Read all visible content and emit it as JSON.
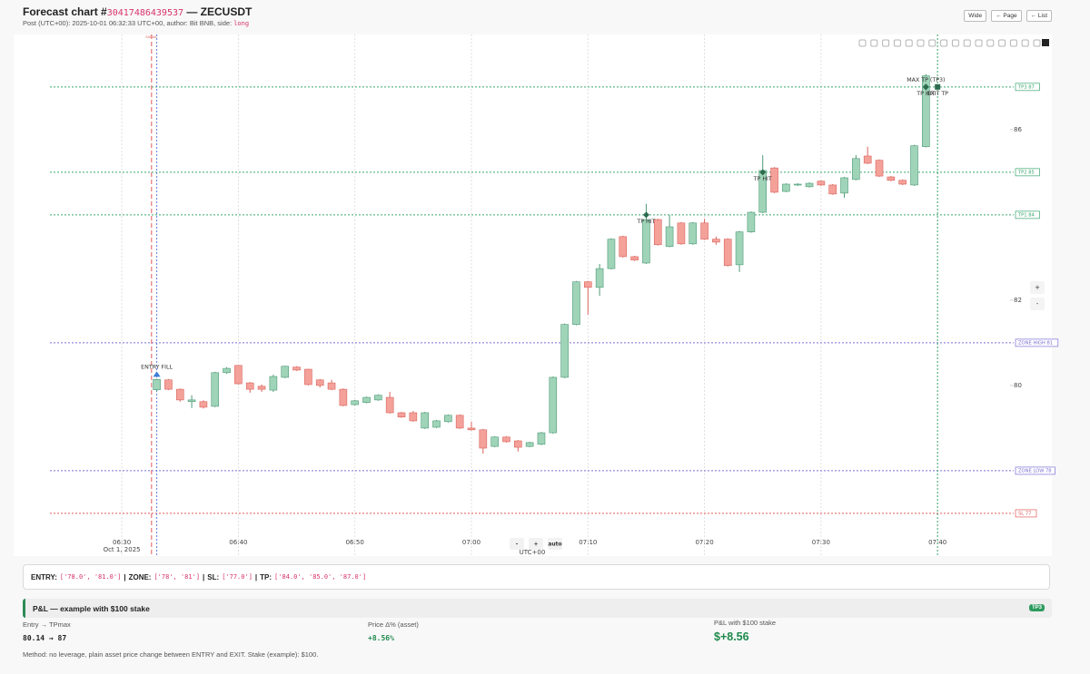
{
  "header": {
    "title_prefix": "Forecast chart #",
    "chart_id": "30417486439537",
    "title_suffix": " — ZECUSDT",
    "subtitle": "Post (UTC+00): 2025-10-01 06:32:33 UTC+00, author: Bit BNB, side: ",
    "side": "long",
    "buttons": [
      "Wide",
      "← Page",
      "← List"
    ]
  },
  "chart_data": {
    "type": "candlestick",
    "x_axis_title": "UTC+00",
    "x_date_label": "Oct 1, 2025",
    "xlim": [
      "06:20:43",
      "07:46:04"
    ],
    "xticks": [
      "06:30",
      "06:40",
      "06:50",
      "07:00",
      "07:10",
      "07:20",
      "07:30",
      "07:40"
    ],
    "ylim": [
      76.02,
      88.23
    ],
    "yticks": [
      80,
      82,
      86
    ],
    "up_color": "#9fd4b8",
    "up_border": "#4f9a77",
    "down_color": "#f4a19a",
    "down_border": "#d9645c",
    "x": [
      "06:33",
      "06:34",
      "06:35",
      "06:36",
      "06:37",
      "06:38",
      "06:39",
      "06:40",
      "06:41",
      "06:42",
      "06:43",
      "06:44",
      "06:45",
      "06:46",
      "06:47",
      "06:48",
      "06:49",
      "06:50",
      "06:51",
      "06:52",
      "06:53",
      "06:54",
      "06:55",
      "06:56",
      "06:57",
      "06:58",
      "06:59",
      "07:00",
      "07:01",
      "07:02",
      "07:03",
      "07:04",
      "07:05",
      "07:06",
      "07:07",
      "07:08",
      "07:09",
      "07:10",
      "07:11",
      "07:12",
      "07:13",
      "07:14",
      "07:15",
      "07:16",
      "07:17",
      "07:18",
      "07:19",
      "07:20",
      "07:21",
      "07:22",
      "07:23",
      "07:24",
      "07:25",
      "07:26",
      "07:27",
      "07:28",
      "07:29",
      "07:30",
      "07:31",
      "07:32",
      "07:33",
      "07:34",
      "07:35",
      "07:36",
      "07:37",
      "07:38",
      "07:39"
    ],
    "open": [
      79.9,
      80.13,
      79.91,
      79.62,
      79.62,
      79.51,
      80.3,
      80.47,
      80.06,
      79.98,
      79.89,
      80.19,
      80.43,
      80.38,
      80.13,
      80.06,
      79.91,
      79.55,
      79.6,
      79.66,
      79.72,
      79.36,
      79.36,
      79.0,
      79.02,
      79.15,
      79.3,
      79.0,
      78.96,
      78.57,
      78.79,
      78.7,
      78.57,
      78.62,
      78.89,
      80.19,
      81.43,
      82.43,
      82.3,
      82.74,
      83.49,
      83.02,
      82.87,
      83.89,
      83.26,
      83.81,
      83.32,
      83.81,
      83.43,
      83.43,
      82.83,
      83.6,
      84.06,
      85.1,
      84.55,
      84.7,
      84.66,
      84.79,
      84.7,
      84.51,
      84.83,
      85.38,
      85.28,
      84.89,
      84.81,
      84.7,
      85.6
    ],
    "high": [
      80.16,
      80.15,
      79.93,
      79.77,
      79.65,
      80.32,
      80.43,
      80.48,
      80.08,
      80.02,
      80.25,
      80.46,
      80.45,
      80.39,
      80.15,
      80.13,
      79.93,
      79.66,
      79.74,
      79.79,
      79.85,
      79.38,
      79.4,
      79.38,
      79.19,
      79.32,
      79.32,
      79.15,
      78.98,
      78.81,
      78.81,
      78.72,
      78.68,
      78.91,
      80.21,
      81.45,
      82.45,
      82.45,
      82.85,
      83.45,
      83.51,
      83.04,
      84.26,
      83.91,
      84.0,
      83.83,
      83.83,
      83.91,
      83.49,
      83.45,
      83.62,
      84.08,
      85.4,
      85.12,
      84.74,
      84.74,
      84.76,
      84.81,
      84.72,
      84.89,
      85.4,
      85.6,
      85.3,
      84.91,
      84.83,
      85.64,
      87.3
    ],
    "low": [
      79.86,
      79.89,
      79.62,
      79.47,
      79.46,
      79.49,
      80.27,
      80.02,
      79.83,
      79.85,
      79.85,
      80.17,
      80.34,
      80.0,
      79.95,
      79.89,
      79.51,
      79.53,
      79.58,
      79.64,
      79.34,
      79.24,
      79.15,
      78.98,
      79.0,
      79.13,
      78.98,
      78.94,
      78.4,
      78.55,
      78.66,
      78.45,
      78.55,
      78.6,
      78.87,
      80.17,
      81.41,
      81.66,
      82.1,
      82.72,
      83.0,
      82.92,
      82.85,
      83.28,
      83.24,
      83.3,
      83.3,
      83.41,
      83.3,
      82.79,
      82.66,
      83.58,
      84.04,
      84.51,
      84.53,
      84.68,
      84.64,
      84.68,
      84.47,
      84.4,
      84.81,
      85.19,
      84.89,
      84.79,
      84.7,
      84.68,
      85.58
    ],
    "close": [
      80.14,
      79.91,
      79.66,
      79.66,
      79.49,
      80.3,
      80.4,
      80.04,
      79.91,
      79.91,
      80.21,
      80.45,
      80.36,
      80.02,
      80.0,
      79.91,
      79.53,
      79.64,
      79.72,
      79.77,
      79.36,
      79.26,
      79.17,
      79.36,
      79.17,
      79.3,
      79.0,
      78.96,
      78.53,
      78.79,
      78.68,
      78.55,
      78.66,
      78.89,
      80.19,
      81.43,
      82.43,
      82.3,
      82.74,
      83.43,
      83.02,
      82.94,
      83.89,
      83.3,
      83.72,
      83.32,
      83.81,
      83.43,
      83.36,
      82.81,
      83.6,
      84.06,
      85.04,
      84.53,
      84.72,
      84.72,
      84.74,
      84.7,
      84.49,
      84.87,
      85.32,
      85.21,
      84.91,
      84.81,
      84.72,
      85.62,
      87.26
    ],
    "levels": [
      {
        "label": "TP3 87",
        "value": 87,
        "color": "#3aa66e"
      },
      {
        "label": "TP2 85",
        "value": 85,
        "color": "#3aa66e"
      },
      {
        "label": "TP1 84",
        "value": 84,
        "color": "#3aa66e"
      },
      {
        "label": "ZONE HIGH 81",
        "value": 81,
        "color": "#7b6fd6"
      },
      {
        "label": "ZONE LOW 78",
        "value": 78,
        "color": "#7b6fd6"
      },
      {
        "label": "SL 77",
        "value": 77,
        "color": "#e05b5b"
      }
    ],
    "vertical_lines": [
      {
        "time": "06:32:33",
        "label": "SIGNAL",
        "color": "#e05b5b"
      },
      {
        "time": "06:33",
        "color": "#5b7fe0"
      },
      {
        "time": "07:40",
        "color": "#3aa66e"
      }
    ],
    "markers": [
      {
        "time": "06:33",
        "price": 80.14,
        "label": "ENTRY FILL",
        "position": "above",
        "shape": "triangle",
        "color": "#3b7dd8"
      },
      {
        "time": "07:15",
        "price": 84,
        "label": "TP HIT",
        "position": "below",
        "shape": "diamond",
        "color": "#2e6b4f"
      },
      {
        "time": "07:25",
        "price": 85,
        "label": "TP HIT",
        "position": "below",
        "shape": "diamond",
        "color": "#2e6b4f"
      },
      {
        "time": "07:39",
        "price": 87,
        "label": "MAX TP (TP3)",
        "position": "above",
        "shape": "diamond",
        "color": "#2e6b4f"
      },
      {
        "time": "07:39",
        "price": 87,
        "label": "TP HIT",
        "position": "below",
        "shape": "diamond",
        "color": "#2e6b4f"
      },
      {
        "time": "07:40",
        "price": 87,
        "label": "EXIT TP",
        "position": "below",
        "shape": "square",
        "color": "#2e6b4f"
      }
    ]
  },
  "controls": {
    "zoom": [
      "+",
      "-"
    ],
    "bottom": [
      "-",
      "+",
      "auto"
    ]
  },
  "levels_panel": {
    "separator": "|",
    "items": [
      {
        "label": "ENTRY:",
        "value": "['78.0', '81.0']"
      },
      {
        "label": "ZONE:",
        "value": "['78', '81']"
      },
      {
        "label": "SL:",
        "value": "['77.0']"
      },
      {
        "label": "TP:",
        "value": "['84.0', '85.0', '87.0']"
      }
    ]
  },
  "pnl": {
    "title": "P&L — example with $100 stake",
    "badge": "TP3",
    "columns": [
      {
        "label": "Entry → TPmax",
        "value": "80.14 → 87"
      },
      {
        "label": "Price Δ% (asset)",
        "value": "+8.56%"
      },
      {
        "label": "P&L with $100 stake",
        "value": "$+8.56"
      }
    ],
    "method": "Method: no leverage, plain asset price change between ENTRY and EXIT. Stake (example): $100."
  }
}
